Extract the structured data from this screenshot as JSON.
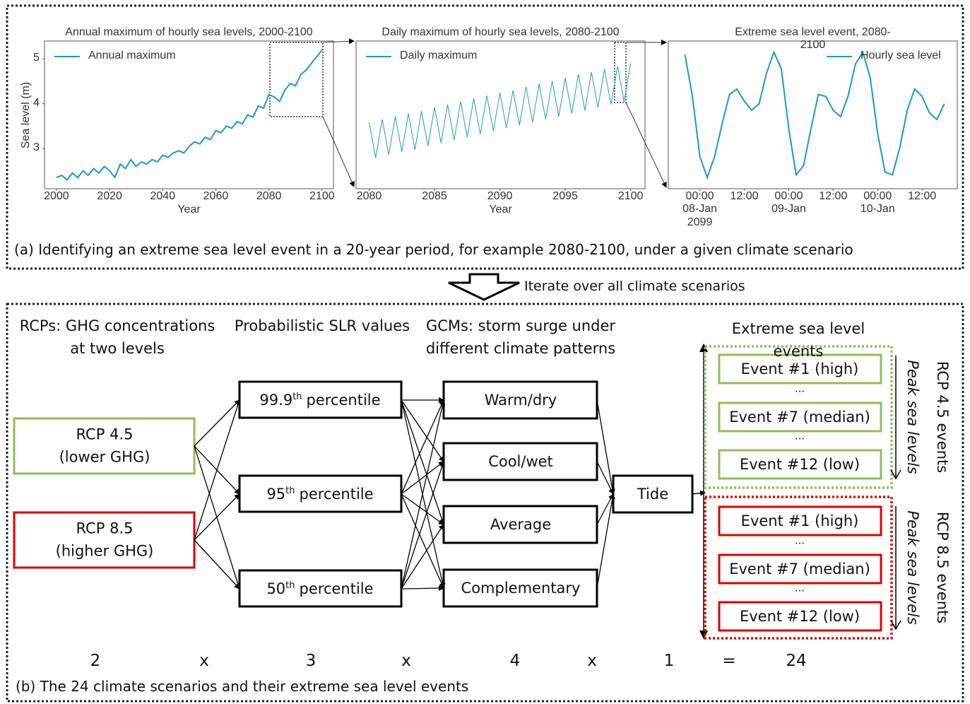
{
  "chart_data": [
    {
      "type": "line",
      "title": "Annual maximum of hourly sea levels, 2000-2100",
      "x_label": "Year",
      "y_label": "Sea level (m)",
      "x": [
        2000,
        2002,
        2004,
        2006,
        2008,
        2010,
        2012,
        2014,
        2016,
        2018,
        2020,
        2022,
        2024,
        2026,
        2028,
        2030,
        2032,
        2034,
        2036,
        2038,
        2040,
        2042,
        2044,
        2046,
        2048,
        2050,
        2052,
        2054,
        2056,
        2058,
        2060,
        2062,
        2064,
        2066,
        2068,
        2070,
        2072,
        2074,
        2076,
        2078,
        2080,
        2082,
        2084,
        2086,
        2088,
        2090,
        2092,
        2094,
        2096,
        2098,
        2100
      ],
      "series": [
        {
          "name": "Annual maximum",
          "color": "#1a9bc4",
          "values": [
            2.35,
            2.4,
            2.3,
            2.45,
            2.35,
            2.5,
            2.4,
            2.55,
            2.45,
            2.6,
            2.5,
            2.35,
            2.65,
            2.55,
            2.75,
            2.6,
            2.7,
            2.65,
            2.75,
            2.7,
            2.85,
            2.8,
            2.9,
            2.95,
            2.9,
            3.05,
            3.15,
            3.1,
            3.25,
            3.2,
            3.4,
            3.35,
            3.5,
            3.45,
            3.6,
            3.55,
            3.75,
            3.7,
            3.95,
            3.9,
            4.2,
            4.15,
            4.05,
            4.3,
            4.45,
            4.4,
            4.65,
            4.75,
            4.9,
            5.05,
            5.2
          ]
        }
      ],
      "xlim": [
        1995.5,
        2104.3
      ],
      "xticks": [
        2000,
        2020,
        2040,
        2060,
        2080,
        2100
      ],
      "ylim": [
        2.1,
        5.4
      ],
      "yticks": [
        3,
        4,
        5
      ],
      "legend": "upper left"
    },
    {
      "type": "line",
      "title": "Daily maximum of hourly sea levels, 2080-2100",
      "x_label": "Year",
      "x": [
        2080,
        2080.5,
        2081,
        2081.5,
        2082,
        2082.5,
        2083,
        2083.5,
        2084,
        2084.5,
        2085,
        2085.5,
        2086,
        2086.5,
        2087,
        2087.5,
        2088,
        2088.5,
        2089,
        2089.5,
        2090,
        2090.5,
        2091,
        2091.5,
        2092,
        2092.5,
        2093,
        2093.5,
        2094,
        2094.5,
        2095,
        2095.5,
        2096,
        2096.5,
        2097,
        2097.5,
        2098,
        2098.5,
        2099,
        2099.5,
        2100
      ],
      "series": [
        {
          "name": "Daily maximum",
          "color": "#1e9bc0",
          "values": [
            3.9,
            3.42,
            3.94,
            3.46,
            3.98,
            3.5,
            4.02,
            3.53,
            4.05,
            3.58,
            4.1,
            3.62,
            4.14,
            3.66,
            4.18,
            3.7,
            4.22,
            3.74,
            4.26,
            3.78,
            4.3,
            3.82,
            4.33,
            3.86,
            4.38,
            3.9,
            4.42,
            3.94,
            4.46,
            3.98,
            4.5,
            4.02,
            4.55,
            4.06,
            4.58,
            4.1,
            4.62,
            4.14,
            4.66,
            4.18,
            4.7
          ]
        }
      ],
      "xlim": [
        2079,
        2101.1
      ],
      "xticks": [
        2080,
        2085,
        2090,
        2095,
        2100
      ],
      "ylim": [
        3.0,
        5.0
      ],
      "legend": "upper left"
    },
    {
      "type": "line",
      "title": "Extreme sea level event, 2080-2100",
      "x": [
        "2099-01-07T20:00",
        "2099-01-07T22:00",
        "2099-01-08T00:00",
        "2099-01-08T02:00",
        "2099-01-08T04:00",
        "2099-01-08T06:00",
        "2099-01-08T08:00",
        "2099-01-08T10:00",
        "2099-01-08T12:00",
        "2099-01-08T14:00",
        "2099-01-08T16:00",
        "2099-01-08T18:00",
        "2099-01-08T20:00",
        "2099-01-08T22:00",
        "2099-01-09T00:00",
        "2099-01-09T02:00",
        "2099-01-09T04:00",
        "2099-01-09T06:00",
        "2099-01-09T08:00",
        "2099-01-09T10:00",
        "2099-01-09T12:00",
        "2099-01-09T14:00",
        "2099-01-09T16:00",
        "2099-01-09T18:00",
        "2099-01-09T20:00",
        "2099-01-09T22:00",
        "2099-01-10T00:00",
        "2099-01-10T02:00",
        "2099-01-10T04:00",
        "2099-01-10T06:00",
        "2099-01-10T08:00",
        "2099-01-10T10:00",
        "2099-01-10T12:00",
        "2099-01-10T14:00",
        "2099-01-10T16:00",
        "2099-01-10T18:00"
      ],
      "series": [
        {
          "name": "Hourly sea level",
          "color": "#1a9bc4",
          "values": [
            5.15,
            4.7,
            4.05,
            3.82,
            4.05,
            4.4,
            4.72,
            4.78,
            4.65,
            4.55,
            4.62,
            4.95,
            5.18,
            5.0,
            4.35,
            3.85,
            3.95,
            4.35,
            4.72,
            4.7,
            4.55,
            4.48,
            4.7,
            5.05,
            5.18,
            4.9,
            4.3,
            3.88,
            3.85,
            4.15,
            4.55,
            4.78,
            4.7,
            4.52,
            4.45,
            4.62
          ]
        }
      ],
      "xlim": [
        "2099-01-07T15:30",
        "2099-01-10T21:30"
      ],
      "xticks": [
        {
          "value": "2099-01-08T00:00",
          "label": "00:00\n08-Jan\n2099"
        },
        {
          "value": "2099-01-08T12:00",
          "label": "12:00"
        },
        {
          "value": "2099-01-09T00:00",
          "label": "00:00\n09-Jan"
        },
        {
          "value": "2099-01-09T12:00",
          "label": "12:00"
        },
        {
          "value": "2099-01-10T00:00",
          "label": "00:00\n10-Jan"
        },
        {
          "value": "2099-01-10T12:00",
          "label": "12:00"
        }
      ],
      "ylim": [
        3.7,
        5.3
      ],
      "legend": "upper right"
    }
  ],
  "figure": {
    "caption_a": "(a) Identifying an extreme sea level event in a 20-year period, for example 2080-2100, under a given climate scenario",
    "iterate": "Iterate over all climate scenarios",
    "caption_b": "(b) The 24 climate scenarios and their extreme sea level events",
    "headers": [
      "RCPs: GHG concentrations\nat two levels",
      "Probabilistic SLR values",
      "GCMs: storm surge under\ndifferent climate patterns",
      "Extreme sea level events"
    ],
    "rcps": [
      "RCP 4.5\n(lower GHG)",
      "RCP 8.5\n(higher GHG)"
    ],
    "slr": [
      {
        "value": "99.9",
        "sup": "th",
        "label": "percentile"
      },
      {
        "value": "95",
        "sup": "th",
        "label": "percentile"
      },
      {
        "value": "50",
        "sup": "th",
        "label": "percentile"
      }
    ],
    "gcms": [
      "Warm/dry",
      "Cool/wet",
      "Average",
      "Complementary"
    ],
    "tide": "Tide",
    "event_groups": [
      {
        "name": "RCP 4.5 events",
        "side": "Peak sea levels",
        "events": [
          "Event #1 (high)",
          "...",
          "Event #7 (median)",
          "...",
          "Event #12 (low)"
        ]
      },
      {
        "name": "RCP 8.5 events",
        "side": "Peak sea levels",
        "events": [
          "Event #1 (high)",
          "...",
          "Event #7 (median)",
          "...",
          "Event #12 (low)"
        ]
      }
    ],
    "equation": [
      2,
      "x",
      3,
      "x",
      4,
      "x",
      1,
      "=",
      24
    ]
  }
}
